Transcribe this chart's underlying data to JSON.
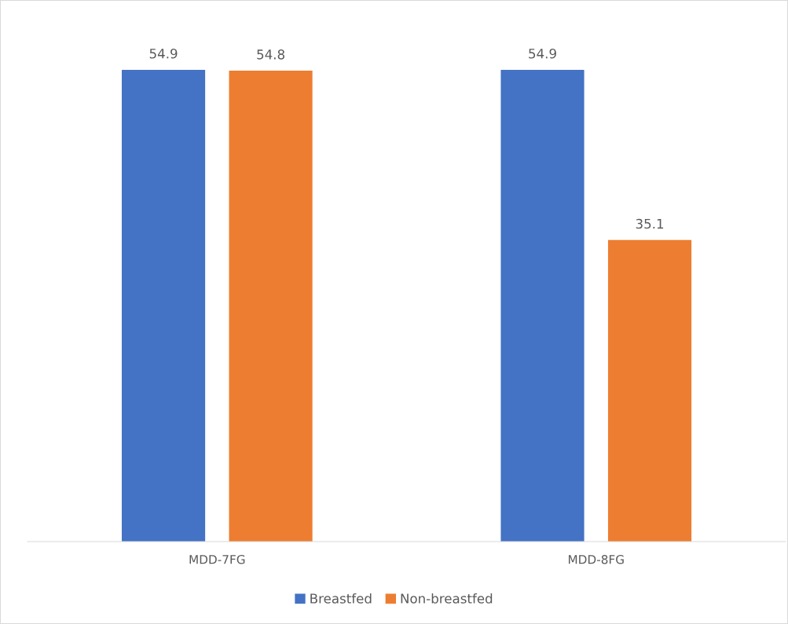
{
  "chart_data": {
    "type": "bar",
    "categories": [
      "MDD-7FG",
      "MDD-8FG"
    ],
    "series": [
      {
        "name": "Breastfed",
        "color": "#4472c4",
        "values": [
          54.9,
          54.9
        ]
      },
      {
        "name": "Non-breastfed",
        "color": "#ed7d31",
        "values": [
          54.8,
          35.1
        ]
      }
    ],
    "tick_labels": "x",
    "data_labels": true,
    "grid": false,
    "legend": "bottom"
  }
}
